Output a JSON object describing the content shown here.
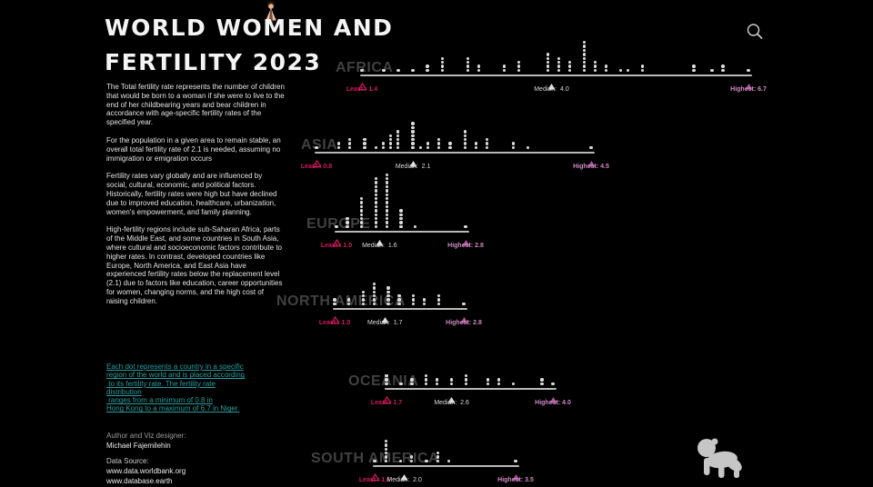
{
  "header": {
    "title_line1": "WORLD WOMEN AND",
    "title_line2": "FERTILITY 2023"
  },
  "icons": {
    "search": "magnifier-icon",
    "woman": "woman-figure-icon",
    "baby": "crawling-baby-silhouette-icon"
  },
  "sidebar": {
    "paragraphs": [
      "The Total fertility rate represents the number of children that would be born to a woman if she were to live to the end of her childbearing years and bear children in accordance with age-specific fertility rates of the specified year.",
      "For the population in a given area to remain stable, an overall total fertility rate of 2.1 is needed, assuming no immigration or emigration occurs",
      "Fertility rates vary globally and are influenced by social, cultural, economic, and political factors. Historically, fertility rates were high but have declined due to improved education, healthcare, urbanization, women's empowerment, and family planning.",
      "High-fertility regions include sub-Saharan Africa, parts of the Middle East, and some countries in South Asia, where cultural and socioeconomic factors contribute to higher rates. In contrast, developed countries like Europe, North America, and East Asia have experienced fertility rates below the replacement level (2.1) due to factors like education, career opportunities for women, changing norms, and the high cost of raising children."
    ],
    "note_lines": [
      "Each dot represents a country in a specific",
      "region of the world and is placed according",
      " to its fertility rate. The fertility rate",
      "distribution",
      " ranges from a minimum of 0.8 in",
      "Hong Kong to a maximum of 6.7 in Niger."
    ],
    "author_label": "Author and Viz designer:",
    "author_name": "Michael Fajemilehin",
    "source_label": "Data Source:",
    "source_links": [
      "www.data.worldbank.org",
      "www.database.earth"
    ]
  },
  "labels": {
    "least_prefix": "Least :",
    "median_prefix": "Median:",
    "highest_prefix": "Highest:"
  },
  "colors": {
    "least": "#d4175f",
    "median_triangle": "#e2e2e2",
    "median_text": "#dcdcdc",
    "highest_triangle": "#a9539d",
    "highest_text": "#cf8bc2",
    "dot": "#dcdcdc",
    "axis": "#b9b9b9",
    "region_label": "#414141",
    "note_text": "#2d9d9d"
  },
  "chart_data": {
    "type": "scatter",
    "variant": "dot-strip-plot",
    "title": "World Women and Fertility 2023",
    "x_meaning": "Total fertility rate (children per woman)",
    "x_range_overall": [
      0.8,
      6.7
    ],
    "legend_note": "Each dot = one country; hollow triangle = least, white triangle = median, purple triangle = highest",
    "regions": [
      {
        "name": "AFRICA",
        "least": 1.4,
        "median": 4.0,
        "highest": 6.7,
        "dot_stacks": [
          [
            1.4,
            1
          ],
          [
            1.7,
            1
          ],
          [
            1.9,
            1
          ],
          [
            2.1,
            1
          ],
          [
            2.3,
            2
          ],
          [
            2.5,
            4
          ],
          [
            2.85,
            4
          ],
          [
            3.0,
            2
          ],
          [
            3.35,
            2
          ],
          [
            3.55,
            3
          ],
          [
            3.95,
            5
          ],
          [
            4.1,
            4
          ],
          [
            4.25,
            3
          ],
          [
            4.45,
            8
          ],
          [
            4.6,
            3
          ],
          [
            4.75,
            2
          ],
          [
            4.95,
            1
          ],
          [
            5.05,
            1
          ],
          [
            5.25,
            2
          ],
          [
            5.95,
            2
          ],
          [
            6.2,
            1
          ],
          [
            6.35,
            2
          ],
          [
            6.7,
            1
          ]
        ]
      },
      {
        "name": "ASIA",
        "least": 0.8,
        "median": 2.1,
        "highest": 4.5,
        "dot_stacks": [
          [
            0.8,
            1
          ],
          [
            1.1,
            2
          ],
          [
            1.25,
            3
          ],
          [
            1.45,
            3
          ],
          [
            1.6,
            1
          ],
          [
            1.7,
            2
          ],
          [
            1.8,
            4
          ],
          [
            1.9,
            5
          ],
          [
            2.1,
            7
          ],
          [
            2.2,
            1
          ],
          [
            2.3,
            2
          ],
          [
            2.45,
            3
          ],
          [
            2.6,
            2
          ],
          [
            2.8,
            5
          ],
          [
            2.95,
            2
          ],
          [
            3.1,
            3
          ],
          [
            3.45,
            2
          ],
          [
            3.65,
            1
          ],
          [
            4.5,
            1
          ]
        ]
      },
      {
        "name": "EUROPE",
        "least": 1.0,
        "median": 1.6,
        "highest": 2.8,
        "dot_stacks": [
          [
            1.0,
            1
          ],
          [
            1.15,
            3
          ],
          [
            1.35,
            8
          ],
          [
            1.55,
            13
          ],
          [
            1.7,
            14
          ],
          [
            1.9,
            5
          ],
          [
            2.1,
            1
          ],
          [
            2.8,
            1
          ]
        ]
      },
      {
        "name": "NORTH AMERICA",
        "least": 1.0,
        "median": 1.7,
        "highest": 2.8,
        "dot_stacks": [
          [
            1.0,
            2
          ],
          [
            1.2,
            2
          ],
          [
            1.4,
            4
          ],
          [
            1.55,
            6
          ],
          [
            1.75,
            5
          ],
          [
            1.9,
            3
          ],
          [
            2.1,
            3
          ],
          [
            2.25,
            2
          ],
          [
            2.45,
            3
          ],
          [
            2.8,
            1
          ]
        ]
      },
      {
        "name": "OCEANIA",
        "least": 1.7,
        "median": 2.6,
        "highest": 4.0,
        "dot_stacks": [
          [
            1.7,
            3
          ],
          [
            1.9,
            1
          ],
          [
            2.05,
            2
          ],
          [
            2.25,
            3
          ],
          [
            2.4,
            2
          ],
          [
            2.6,
            2
          ],
          [
            2.8,
            3
          ],
          [
            3.1,
            2
          ],
          [
            3.25,
            2
          ],
          [
            3.45,
            1
          ],
          [
            3.85,
            2
          ],
          [
            4.0,
            1
          ]
        ]
      },
      {
        "name": "SOUTH AMERICA",
        "least": 1.6,
        "median": 2.0,
        "highest": 3.5,
        "dot_stacks": [
          [
            1.6,
            1
          ],
          [
            1.75,
            6
          ],
          [
            1.95,
            1
          ],
          [
            2.1,
            2
          ],
          [
            2.3,
            1
          ],
          [
            2.45,
            3
          ],
          [
            2.6,
            1
          ],
          [
            3.5,
            1
          ]
        ]
      }
    ]
  }
}
